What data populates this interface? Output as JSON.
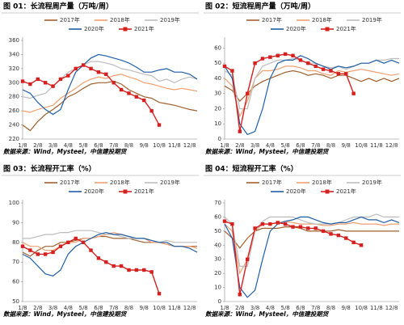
{
  "chart_data": [
    {
      "type": "line",
      "title": "图 01：长流程周产量（万吨/周）",
      "source": "数据来源：Wind，Mysteel，中信建投期货",
      "categories": [
        "1/8",
        null,
        "2/8",
        null,
        "3/8",
        null,
        "4/8",
        null,
        "5/8",
        null,
        "6/8",
        null,
        "7/8",
        null,
        "8/8",
        null,
        "9/8",
        null,
        "10/8",
        null,
        "11/8",
        null,
        "12/8",
        null
      ],
      "ylim": [
        220,
        360
      ],
      "yticks": [
        220,
        240,
        260,
        280,
        300,
        320,
        340,
        360
      ],
      "grid": false,
      "series": [
        {
          "name": "2017年",
          "color": "#a0602e",
          "values": [
            240,
            232,
            245,
            255,
            262,
            270,
            280,
            285,
            292,
            298,
            300,
            300,
            302,
            298,
            290,
            285,
            280,
            278,
            272,
            270,
            268,
            265,
            262,
            260
          ]
        },
        {
          "name": "2018年",
          "color": "#f0a070",
          "values": [
            260,
            258,
            262,
            265,
            268,
            278,
            285,
            292,
            300,
            305,
            308,
            306,
            310,
            312,
            308,
            305,
            300,
            298,
            295,
            292,
            290,
            292,
            290,
            288
          ]
        },
        {
          "name": "2019年",
          "color": "#bdbdbd",
          "values": [
            280,
            278,
            282,
            285,
            295,
            305,
            315,
            320,
            325,
            330,
            330,
            328,
            325,
            320,
            318,
            315,
            312,
            310,
            302,
            305,
            300,
            305,
            308,
            305
          ]
        },
        {
          "name": "2020年",
          "color": "#1f5fa8",
          "values": [
            290,
            285,
            272,
            262,
            255,
            262,
            290,
            315,
            325,
            335,
            340,
            338,
            335,
            332,
            328,
            322,
            315,
            315,
            318,
            320,
            315,
            315,
            312,
            305
          ]
        },
        {
          "name": "2021年",
          "color": "#d62020",
          "marker": "square",
          "values": [
            302,
            298,
            305,
            300,
            295,
            305,
            310,
            320,
            325,
            320,
            315,
            312,
            300,
            290,
            285,
            280,
            275,
            260,
            240,
            null,
            null,
            null,
            null,
            null
          ]
        }
      ]
    },
    {
      "type": "line",
      "title": "图 02：短流程周产量（万吨/周）",
      "source": "数据来源：Wind，Mysteel，中信建投期货",
      "categories": [
        "1/8",
        null,
        "2/8",
        null,
        "3/8",
        null,
        "4/8",
        null,
        "5/8",
        null,
        "6/8",
        null,
        "7/8",
        null,
        "8/8",
        null,
        "9/8",
        null,
        "10/8",
        null,
        "11/8",
        null,
        "12/8",
        null
      ],
      "ylim": [
        0,
        65
      ],
      "yticks": [
        0,
        10,
        20,
        30,
        40,
        50,
        60
      ],
      "grid": false,
      "series": [
        {
          "name": "2017年",
          "color": "#a0602e",
          "values": [
            35,
            32,
            25,
            30,
            35,
            38,
            40,
            42,
            44,
            45,
            44,
            42,
            43,
            42,
            40,
            42,
            42,
            40,
            38,
            40,
            38,
            40,
            38,
            40
          ]
        },
        {
          "name": "2018年",
          "color": "#f0a070",
          "values": [
            40,
            35,
            15,
            25,
            40,
            45,
            45,
            46,
            48,
            48,
            47,
            45,
            45,
            43,
            42,
            45,
            44,
            45,
            46,
            45,
            44,
            43,
            42,
            43
          ]
        },
        {
          "name": "2019年",
          "color": "#bdbdbd",
          "values": [
            45,
            42,
            20,
            20,
            40,
            48,
            50,
            52,
            52,
            53,
            52,
            50,
            50,
            48,
            47,
            48,
            46,
            48,
            50,
            50,
            52,
            52,
            53,
            53
          ]
        },
        {
          "name": "2020年",
          "color": "#1f5fa8",
          "values": [
            48,
            40,
            10,
            3,
            5,
            20,
            40,
            50,
            52,
            52,
            55,
            53,
            50,
            48,
            46,
            48,
            47,
            48,
            50,
            50,
            52,
            50,
            52,
            50
          ]
        },
        {
          "name": "2021年",
          "color": "#d62020",
          "marker": "square",
          "values": [
            48,
            45,
            5,
            30,
            50,
            53,
            54,
            55,
            56,
            55,
            52,
            50,
            48,
            46,
            45,
            43,
            43,
            30,
            null,
            null,
            null,
            null,
            null,
            null
          ]
        }
      ]
    },
    {
      "type": "line",
      "title": "图 03：长流程开工率（%）",
      "source": "数据来源：Wind，Mysteel，中信建投期货",
      "categories": [
        "1/8",
        null,
        "2/8",
        null,
        "3/8",
        null,
        "4/8",
        null,
        "5/8",
        null,
        "6/8",
        null,
        "7/8",
        null,
        "8/8",
        null,
        "9/8",
        null,
        "10/8",
        null,
        "11/8",
        null,
        "12/8",
        null
      ],
      "ylim": [
        50,
        100
      ],
      "yticks": [
        50,
        60,
        70,
        80,
        90,
        100
      ],
      "grid": false,
      "series": [
        {
          "name": "2017年",
          "color": "#a0602e",
          "values": [
            75,
            73,
            76,
            78,
            78,
            80,
            80,
            81,
            82,
            82,
            83,
            83,
            82,
            82,
            82,
            81,
            80,
            80,
            80,
            79,
            78,
            78,
            78,
            78
          ]
        },
        {
          "name": "2018年",
          "color": "#f0a070",
          "values": [
            80,
            78,
            78,
            76,
            76,
            78,
            80,
            80,
            82,
            82,
            83,
            84,
            85,
            84,
            83,
            82,
            82,
            80,
            80,
            79,
            78,
            78,
            78,
            77
          ]
        },
        {
          "name": "2019年",
          "color": "#bdbdbd",
          "values": [
            82,
            82,
            83,
            84,
            84,
            85,
            85,
            86,
            86,
            86,
            85,
            84,
            84,
            83,
            82,
            82,
            82,
            81,
            80,
            81,
            80,
            80,
            80,
            80
          ]
        },
        {
          "name": "2020年",
          "color": "#1f5fa8",
          "values": [
            74,
            72,
            68,
            64,
            63,
            66,
            74,
            78,
            80,
            82,
            84,
            85,
            84,
            84,
            83,
            82,
            82,
            81,
            80,
            80,
            78,
            78,
            77,
            75
          ]
        },
        {
          "name": "2021年",
          "color": "#d62020",
          "marker": "square",
          "values": [
            78,
            76,
            74,
            74,
            75,
            78,
            80,
            82,
            80,
            76,
            72,
            70,
            68,
            68,
            66,
            66,
            66,
            65,
            54,
            null,
            null,
            null,
            null,
            null
          ]
        }
      ]
    },
    {
      "type": "line",
      "title": "图 04：短流程开工率（%）",
      "source": "数据来源：Wind，Mysteel，中信建投期货",
      "categories": [
        "1/8",
        null,
        "2/8",
        null,
        "3/8",
        null,
        "4/8",
        null,
        "5/8",
        null,
        "6/8",
        null,
        "7/8",
        null,
        "8/8",
        null,
        "9/8",
        null,
        "10/8",
        null,
        "11/8",
        null,
        "12/8",
        null
      ],
      "ylim": [
        0,
        70
      ],
      "yticks": [
        0,
        10,
        20,
        30,
        40,
        50,
        60,
        70
      ],
      "grid": false,
      "series": [
        {
          "name": "2017年",
          "color": "#a0602e",
          "values": [
            50,
            45,
            38,
            45,
            50,
            52,
            52,
            52,
            53,
            53,
            52,
            50,
            50,
            50,
            50,
            51,
            50,
            50,
            50,
            50,
            50,
            50,
            50,
            50
          ]
        },
        {
          "name": "2018年",
          "color": "#f0a070",
          "values": [
            55,
            50,
            20,
            30,
            50,
            55,
            55,
            56,
            57,
            56,
            55,
            55,
            55,
            54,
            54,
            55,
            55,
            56,
            55,
            55,
            55,
            54,
            55,
            55
          ]
        },
        {
          "name": "2019年",
          "color": "#bdbdbd",
          "values": [
            60,
            55,
            25,
            25,
            50,
            57,
            60,
            60,
            60,
            60,
            58,
            56,
            55,
            55,
            55,
            56,
            58,
            60,
            60,
            60,
            62,
            60,
            60,
            60
          ]
        },
        {
          "name": "2020年",
          "color": "#1f5fa8",
          "values": [
            55,
            45,
            10,
            3,
            8,
            30,
            50,
            55,
            57,
            58,
            60,
            60,
            58,
            56,
            55,
            56,
            56,
            58,
            60,
            58,
            58,
            56,
            58,
            56
          ]
        },
        {
          "name": "2021年",
          "color": "#d62020",
          "marker": "square",
          "values": [
            57,
            55,
            5,
            30,
            52,
            55,
            55,
            56,
            55,
            53,
            53,
            52,
            52,
            50,
            48,
            47,
            45,
            42,
            40,
            null,
            null,
            null,
            null,
            null
          ]
        }
      ]
    }
  ]
}
